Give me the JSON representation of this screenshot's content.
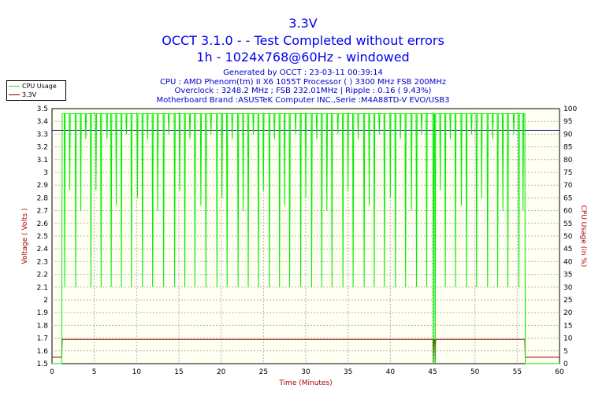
{
  "header": {
    "title": "3.3V",
    "subtitle_1": "OCCT 3.1.0 -  - Test Completed without errors",
    "subtitle_2": "1h - 1024x768@60Hz - windowed"
  },
  "info": {
    "generated": "Generated by OCCT : 23-03-11 00:39:14",
    "cpu": "CPU : AMD Phenom(tm) II X6 1055T Processor (  ) 3300 MHz FSB 200MHz",
    "overclock": "Overclock : 3248.2 MHz ; FSB 232.01MHz | Ripple : 0.16 ( 9.43%)",
    "motherboard": "Motherboard Brand :ASUSTeK Computer INC.,Serie :M4A88TD-V EVO/USB3"
  },
  "colors": {
    "cpu": "#00ee00",
    "voltage": "#880000",
    "threshold": "#000080",
    "plot_bg": "#fffff2",
    "grid": "#b4b4b4",
    "title": "#0000ee",
    "axis_label": "#aa0000"
  },
  "chart_data": {
    "type": "line",
    "xlabel": "Time (Minutes)",
    "ylabel_left": "Voltage ( Volts )",
    "ylabel_right": "CPU Usage (in %)",
    "xlim": [
      0,
      60
    ],
    "ylim_left": [
      1.5,
      3.5
    ],
    "ylim_right": [
      0,
      100
    ],
    "x_ticks": [
      0,
      5,
      10,
      15,
      20,
      25,
      30,
      35,
      40,
      45,
      50,
      55,
      60
    ],
    "y_left_ticks": [
      "1.5",
      "1.6",
      "1.7",
      "1.8",
      "1.9",
      "2",
      "2.1",
      "2.2",
      "2.3",
      "2.4",
      "2.5",
      "2.6",
      "2.7",
      "2.8",
      "2.9",
      "3",
      "3.1",
      "3.2",
      "3.3",
      "3.4",
      "3.5"
    ],
    "y_right_ticks": [
      "0",
      "5",
      "10",
      "15",
      "20",
      "25",
      "30",
      "35",
      "40",
      "45",
      "50",
      "55",
      "60",
      "65",
      "70",
      "75",
      "80",
      "85",
      "90",
      "95",
      "100"
    ],
    "grid": true,
    "legend_position": "top-left",
    "threshold_line_volts": 3.33,
    "series": [
      {
        "name": "CPU Usage",
        "axis": "right",
        "idle_value": 0,
        "active_range": [
          1.2,
          55.9
        ],
        "typical_value": 98,
        "dips": [
          [
            1.5,
            30
          ],
          [
            2.1,
            68
          ],
          [
            2.8,
            30
          ],
          [
            3.4,
            60
          ],
          [
            4.0,
            88
          ],
          [
            4.6,
            30
          ],
          [
            5.2,
            68
          ],
          [
            5.8,
            30
          ],
          [
            6.5,
            88
          ],
          [
            7.0,
            30
          ],
          [
            7.6,
            62
          ],
          [
            8.2,
            30
          ],
          [
            8.8,
            90
          ],
          [
            9.4,
            30
          ],
          [
            10.1,
            65
          ],
          [
            10.7,
            30
          ],
          [
            11.3,
            88
          ],
          [
            11.9,
            30
          ],
          [
            12.5,
            60
          ],
          [
            13.2,
            30
          ],
          [
            13.8,
            90
          ],
          [
            14.5,
            30
          ],
          [
            15.1,
            68
          ],
          [
            15.7,
            30
          ],
          [
            16.3,
            88
          ],
          [
            16.9,
            30
          ],
          [
            17.6,
            62
          ],
          [
            18.2,
            30
          ],
          [
            18.8,
            90
          ],
          [
            19.5,
            30
          ],
          [
            20.1,
            65
          ],
          [
            20.7,
            30
          ],
          [
            21.3,
            88
          ],
          [
            22.0,
            30
          ],
          [
            22.6,
            60
          ],
          [
            23.2,
            30
          ],
          [
            23.8,
            90
          ],
          [
            24.4,
            30
          ],
          [
            25.0,
            68
          ],
          [
            25.7,
            30
          ],
          [
            26.3,
            88
          ],
          [
            26.9,
            30
          ],
          [
            27.5,
            62
          ],
          [
            28.1,
            30
          ],
          [
            28.8,
            90
          ],
          [
            29.4,
            30
          ],
          [
            30.0,
            65
          ],
          [
            30.7,
            30
          ],
          [
            31.3,
            88
          ],
          [
            31.9,
            30
          ],
          [
            32.5,
            60
          ],
          [
            33.1,
            30
          ],
          [
            33.8,
            90
          ],
          [
            34.4,
            30
          ],
          [
            35.0,
            68
          ],
          [
            35.6,
            30
          ],
          [
            36.2,
            88
          ],
          [
            36.9,
            30
          ],
          [
            37.5,
            62
          ],
          [
            38.1,
            30
          ],
          [
            38.7,
            90
          ],
          [
            39.3,
            30
          ],
          [
            40.0,
            65
          ],
          [
            40.6,
            30
          ],
          [
            41.2,
            88
          ],
          [
            41.8,
            30
          ],
          [
            42.5,
            60
          ],
          [
            43.1,
            30
          ],
          [
            43.7,
            90
          ],
          [
            44.3,
            30
          ],
          [
            45.1,
            0
          ],
          [
            45.3,
            0
          ],
          [
            45.9,
            68
          ],
          [
            46.5,
            30
          ],
          [
            47.1,
            88
          ],
          [
            47.7,
            30
          ],
          [
            48.4,
            62
          ],
          [
            49.0,
            30
          ],
          [
            49.6,
            90
          ],
          [
            50.2,
            30
          ],
          [
            50.8,
            65
          ],
          [
            51.5,
            30
          ],
          [
            52.1,
            88
          ],
          [
            52.7,
            30
          ],
          [
            53.3,
            60
          ],
          [
            53.9,
            30
          ],
          [
            54.6,
            90
          ],
          [
            55.2,
            30
          ],
          [
            55.7,
            60
          ]
        ]
      },
      {
        "name": "3.3V",
        "axis": "left",
        "idle_value": 1.55,
        "active_range": [
          1.2,
          55.9
        ],
        "typical_value": 1.69,
        "dips": [
          [
            45.1,
            1.5
          ],
          [
            45.3,
            1.5
          ]
        ]
      }
    ]
  }
}
